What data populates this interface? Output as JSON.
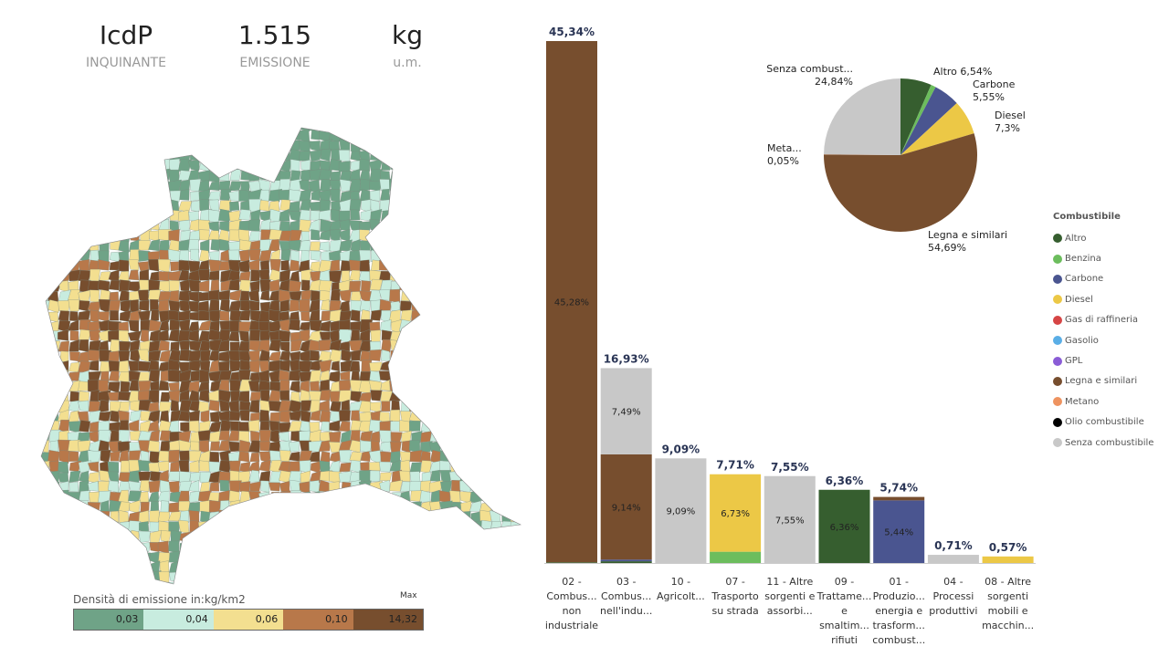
{
  "kpis": [
    {
      "value": "IcdP",
      "label": "INQUINANTE"
    },
    {
      "value": "1.515",
      "label": "EMISSIONE"
    },
    {
      "value": "kg",
      "label": "u.m."
    }
  ],
  "map_legend": {
    "title": "Densità di emissione in:kg/km2",
    "max_label": "Max",
    "bins": [
      "0,03",
      "0,04",
      "0,06",
      "0,10",
      "14,32"
    ],
    "colors": [
      "#6fa387",
      "#c8ecdf",
      "#f3df90",
      "#b8784a",
      "#774e2e"
    ]
  },
  "colors": {
    "Altro": "#365e2f",
    "Benzina": "#6cbd5d",
    "Carbone": "#4a5590",
    "Diesel": "#ecc846",
    "Gas di raffineria": "#d64545",
    "Gasolio": "#5aaee6",
    "GPL": "#8a5cd6",
    "Legna e similari": "#774e2e",
    "Metano": "#ee9360",
    "Olio combustibile": "#000000",
    "Senza combustibile": "#c8c8c8"
  },
  "chart_data": [
    {
      "type": "bar",
      "stacked": true,
      "ylim": [
        0,
        46
      ],
      "categories": [
        [
          "02 -",
          "Combus...",
          "non",
          "industriale"
        ],
        [
          "03 -",
          "Combus...",
          "nell'indu..."
        ],
        [
          "10 -",
          "Agricolt..."
        ],
        [
          "07 -",
          "Trasporto",
          "su strada"
        ],
        [
          "11 - Altre",
          "sorgenti e",
          "assorbi..."
        ],
        [
          "09 -",
          "Trattame...",
          "e",
          "smaltim...",
          "rifiuti"
        ],
        [
          "01 -",
          "Produzio...",
          "energia e",
          "trasform...",
          "combust..."
        ],
        [
          "04 -",
          "Processi",
          "produttivi"
        ],
        [
          "08 - Altre",
          "sorgenti",
          "mobili e",
          "macchin..."
        ]
      ],
      "totals": [
        "45,34%",
        "16,93%",
        "9,09%",
        "7,71%",
        "7,55%",
        "6,36%",
        "5,74%",
        "0,71%",
        "0,57%"
      ],
      "total_values": [
        45.34,
        16.93,
        9.09,
        7.71,
        7.55,
        6.36,
        5.74,
        0.71,
        0.57
      ],
      "segments": [
        [
          {
            "fuel": "Altro",
            "value": 0.06
          },
          {
            "fuel": "Legna e similari",
            "value": 45.28,
            "label": "45,28%"
          }
        ],
        [
          {
            "fuel": "Altro",
            "value": 0.15
          },
          {
            "fuel": "Carbone",
            "value": 0.15
          },
          {
            "fuel": "Legna e similari",
            "value": 9.14,
            "label": "9,14%"
          },
          {
            "fuel": "Senza combustibile",
            "value": 7.49,
            "label": "7,49%"
          }
        ],
        [
          {
            "fuel": "Senza combustibile",
            "value": 9.09,
            "label": "9,09%"
          }
        ],
        [
          {
            "fuel": "Benzina",
            "value": 0.98
          },
          {
            "fuel": "Diesel",
            "value": 6.73,
            "label": "6,73%"
          }
        ],
        [
          {
            "fuel": "Senza combustibile",
            "value": 7.55,
            "label": "7,55%"
          }
        ],
        [
          {
            "fuel": "Altro",
            "value": 6.36,
            "label": "6,36%"
          }
        ],
        [
          {
            "fuel": "Carbone",
            "value": 5.44,
            "label": "5,44%"
          },
          {
            "fuel": "Legna e similari",
            "value": 0.3
          }
        ],
        [
          {
            "fuel": "Senza combustibile",
            "value": 0.71
          }
        ],
        [
          {
            "fuel": "Diesel",
            "value": 0.57
          }
        ]
      ]
    },
    {
      "type": "pie",
      "title": "Combustibile",
      "legend_placement": "right",
      "slices": [
        {
          "name": "Altro",
          "value": 6.54,
          "label": [
            "Altro 6,54%"
          ]
        },
        {
          "name": "Benzina",
          "value": 1.03
        },
        {
          "name": "Carbone",
          "value": 5.55,
          "label": [
            "Carbone",
            "5,55%"
          ]
        },
        {
          "name": "Diesel",
          "value": 7.3,
          "label": [
            "Diesel",
            "7,3%"
          ]
        },
        {
          "name": "Legna e similari",
          "value": 54.69,
          "label": [
            "Legna e similari",
            "54,69%"
          ]
        },
        {
          "name": "Metano",
          "value": 0.05,
          "label": [
            "Meta...",
            "0,05%"
          ]
        },
        {
          "name": "Senza combustibile",
          "value": 24.84,
          "label": [
            "Senza combust...",
            "24,84%"
          ]
        }
      ],
      "legend": [
        "Altro",
        "Benzina",
        "Carbone",
        "Diesel",
        "Gas di raffineria",
        "Gasolio",
        "GPL",
        "Legna e similari",
        "Metano",
        "Olio combustibile",
        "Senza combustibile"
      ]
    }
  ]
}
